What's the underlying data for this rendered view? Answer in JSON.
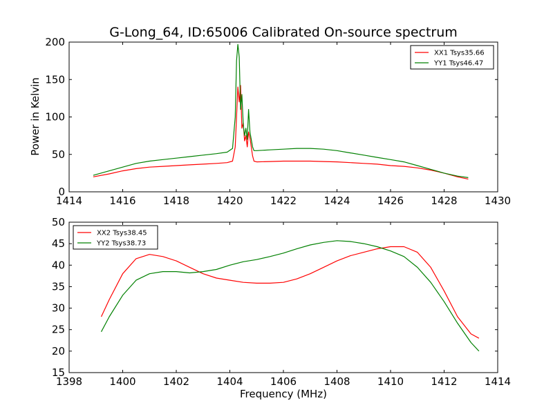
{
  "figure": {
    "title": "G-Long_64, ID:65006 Calibrated On-source spectrum"
  },
  "chart_data": [
    {
      "type": "line",
      "title": "G-Long_64, ID:65006 Calibrated On-source spectrum",
      "xlabel": "",
      "ylabel": "Power in Kelvin",
      "xlim": [
        1414,
        1430
      ],
      "ylim": [
        0,
        200
      ],
      "xticks": [
        1414,
        1416,
        1418,
        1420,
        1422,
        1424,
        1426,
        1428,
        1430
      ],
      "yticks": [
        0,
        50,
        100,
        150,
        200
      ],
      "legend_position": "top-right",
      "grid": false,
      "series": [
        {
          "name": "XX1 Tsys35.66",
          "color": "#ff0000",
          "x": [
            1414.9,
            1415.5,
            1416.0,
            1416.5,
            1417.0,
            1417.5,
            1418.0,
            1418.5,
            1419.0,
            1419.5,
            1419.9,
            1420.1,
            1420.2,
            1420.3,
            1420.35,
            1420.4,
            1420.45,
            1420.5,
            1420.55,
            1420.6,
            1420.65,
            1420.7,
            1420.75,
            1420.8,
            1420.85,
            1420.9,
            1421.0,
            1421.5,
            1422.0,
            1422.5,
            1423.0,
            1423.5,
            1424.0,
            1424.5,
            1425.0,
            1425.5,
            1426.0,
            1426.5,
            1427.0,
            1427.5,
            1428.0,
            1428.5,
            1428.9
          ],
          "y": [
            20,
            24,
            28,
            31,
            33,
            34,
            35,
            36,
            37,
            38,
            39,
            41,
            60,
            140,
            120,
            142,
            85,
            92,
            68,
            75,
            60,
            80,
            72,
            60,
            48,
            41,
            40,
            40.5,
            41,
            41,
            41,
            40.5,
            40,
            39,
            38,
            37,
            35,
            34,
            32,
            29,
            25,
            20,
            17
          ]
        },
        {
          "name": "YY1 Tsys46.47",
          "color": "#008000",
          "x": [
            1414.9,
            1415.5,
            1416.0,
            1416.5,
            1417.0,
            1417.5,
            1418.0,
            1418.5,
            1419.0,
            1419.5,
            1419.9,
            1420.1,
            1420.2,
            1420.25,
            1420.3,
            1420.35,
            1420.4,
            1420.45,
            1420.5,
            1420.55,
            1420.6,
            1420.65,
            1420.7,
            1420.75,
            1420.8,
            1420.85,
            1420.9,
            1421.0,
            1421.5,
            1422.0,
            1422.5,
            1423.0,
            1423.5,
            1424.0,
            1424.5,
            1425.0,
            1425.5,
            1426.0,
            1426.5,
            1427.0,
            1427.5,
            1428.0,
            1428.5,
            1428.9
          ],
          "y": [
            22,
            28,
            33,
            38,
            41,
            43,
            45,
            47,
            49,
            51,
            53,
            58,
            100,
            175,
            197,
            180,
            110,
            130,
            90,
            75,
            85,
            70,
            110,
            80,
            70,
            60,
            55,
            55,
            56,
            57,
            58,
            58,
            57,
            55,
            52,
            49,
            46,
            43,
            40,
            35,
            30,
            25,
            21,
            19
          ]
        }
      ]
    },
    {
      "type": "line",
      "title": "",
      "xlabel": "Frequency (MHz)",
      "ylabel": "",
      "xlim": [
        1398,
        1414
      ],
      "ylim": [
        15,
        50
      ],
      "xticks": [
        1398,
        1400,
        1402,
        1404,
        1406,
        1408,
        1410,
        1412,
        1414
      ],
      "yticks": [
        15,
        20,
        25,
        30,
        35,
        40,
        45,
        50
      ],
      "legend_position": "top-left",
      "grid": false,
      "series": [
        {
          "name": "XX2 Tsys38.45",
          "color": "#ff0000",
          "x": [
            1399.2,
            1399.5,
            1400.0,
            1400.5,
            1401.0,
            1401.5,
            1402.0,
            1402.5,
            1403.0,
            1403.5,
            1404.0,
            1404.5,
            1405.0,
            1405.5,
            1406.0,
            1406.5,
            1407.0,
            1407.5,
            1408.0,
            1408.5,
            1409.0,
            1409.5,
            1410.0,
            1410.5,
            1411.0,
            1411.5,
            1412.0,
            1412.5,
            1413.0,
            1413.3
          ],
          "y": [
            28,
            32,
            38,
            41.5,
            42.5,
            42,
            41,
            39.5,
            38,
            37,
            36.5,
            36,
            35.8,
            35.8,
            36,
            36.8,
            38,
            39.5,
            41,
            42.2,
            43,
            43.8,
            44.3,
            44.3,
            43,
            39.5,
            34,
            28,
            24,
            23
          ]
        },
        {
          "name": "YY2 Tsys38.73",
          "color": "#008000",
          "x": [
            1399.2,
            1399.5,
            1400.0,
            1400.5,
            1401.0,
            1401.5,
            1402.0,
            1402.5,
            1403.0,
            1403.5,
            1404.0,
            1404.5,
            1405.0,
            1405.5,
            1406.0,
            1406.5,
            1407.0,
            1407.5,
            1408.0,
            1408.5,
            1409.0,
            1409.5,
            1410.0,
            1410.5,
            1411.0,
            1411.5,
            1412.0,
            1412.5,
            1413.0,
            1413.3
          ],
          "y": [
            24.5,
            28,
            33,
            36.5,
            38,
            38.5,
            38.5,
            38.2,
            38.5,
            39,
            40,
            40.8,
            41.3,
            42,
            42.8,
            43.8,
            44.7,
            45.3,
            45.7,
            45.5,
            45,
            44.3,
            43.3,
            42,
            39.5,
            36,
            31.5,
            26.5,
            22,
            20
          ]
        }
      ]
    }
  ]
}
